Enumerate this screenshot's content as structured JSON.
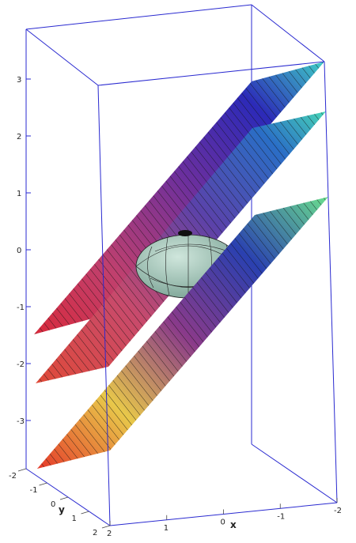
{
  "chart_data": {
    "type": "surface3d",
    "title": "",
    "axes": {
      "x": {
        "label": "x",
        "range": [
          -2,
          2
        ],
        "ticks": [
          "2",
          "1",
          "0",
          "-1",
          "-2"
        ]
      },
      "y": {
        "label": "y",
        "range": [
          -2,
          2
        ],
        "ticks": [
          "-2",
          "-1",
          "0",
          "1",
          "2"
        ]
      },
      "z": {
        "label": "",
        "range": [
          -3.8,
          3.8
        ],
        "ticks": [
          "3",
          "2",
          "1",
          "0",
          "-1",
          "-2",
          "-3"
        ]
      }
    },
    "planes": [
      {
        "z_min": -1.5,
        "z_max": 3.8
      },
      {
        "z_min": -2.3,
        "z_max": 2.9
      },
      {
        "z_min": -3.8,
        "z_max": 1.4
      }
    ],
    "sphere": {
      "center": [
        0,
        0,
        0
      ],
      "radius": 1,
      "color": "#a8c8b8"
    },
    "colors": {
      "box": "#2a2ad0",
      "grid": "#111111"
    }
  }
}
